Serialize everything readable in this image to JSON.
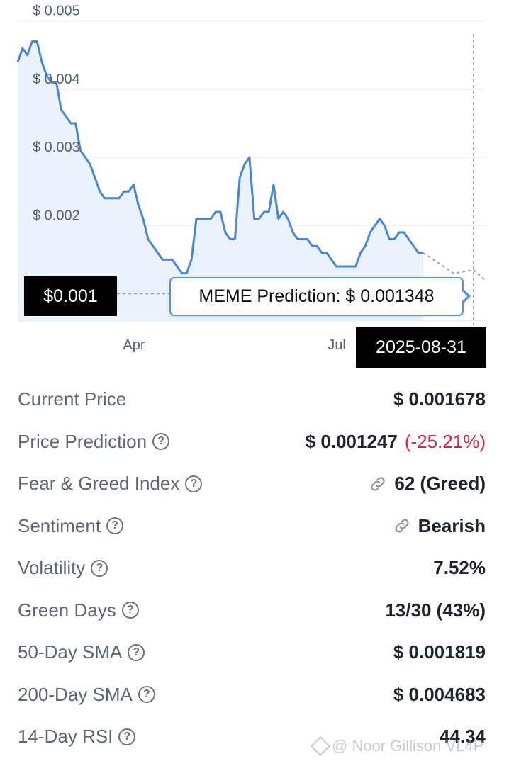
{
  "chart_data": {
    "type": "area",
    "y_ticks": [
      "$ 0.005",
      "$ 0.004",
      "$ 0.003",
      "$ 0.002"
    ],
    "y_tick_values": [
      0.005,
      0.004,
      0.003,
      0.002
    ],
    "x_ticks": [
      "Apr",
      "Jul"
    ],
    "ylim": [
      0.0006,
      0.0051
    ],
    "grid": true,
    "series": [
      {
        "values": [
          0.0044,
          0.0046,
          0.0045,
          0.0047,
          0.0047,
          0.0044,
          0.0042,
          0.0041,
          0.0041,
          0.0037,
          0.0036,
          0.0035,
          0.0035,
          0.0031,
          0.003,
          0.0029,
          0.0027,
          0.0025,
          0.0024,
          0.0024,
          0.0024,
          0.0024,
          0.0025,
          0.0025,
          0.0026,
          0.0023,
          0.0021,
          0.0018,
          0.0017,
          0.0016,
          0.0015,
          0.0015,
          0.0015,
          0.0014,
          0.0013,
          0.0013,
          0.0015,
          0.0021,
          0.0021,
          0.0021,
          0.0021,
          0.0022,
          0.0022,
          0.0019,
          0.0018,
          0.0018,
          0.0027,
          0.0029,
          0.003,
          0.0021,
          0.0021,
          0.0022,
          0.0022,
          0.0026,
          0.0021,
          0.0022,
          0.0021,
          0.0019,
          0.0018,
          0.0018,
          0.0018,
          0.0017,
          0.0017,
          0.0016,
          0.0016,
          0.0015,
          0.0014,
          0.0014,
          0.0014,
          0.0014,
          0.0014,
          0.0016,
          0.0017,
          0.0019,
          0.002,
          0.0021,
          0.002,
          0.0018,
          0.0018,
          0.0019,
          0.0019,
          0.0018,
          0.0017,
          0.0016,
          0.0016
        ]
      }
    ]
  },
  "chart": {
    "price_tag": "$0.001",
    "date_tag": "2025-08-31",
    "tooltip": "MEME Prediction: $ 0.001348"
  },
  "colors": {
    "line": "#4a86d4",
    "fill": "#eaf2fc",
    "negative": "#d6283f",
    "positive": "#40a836"
  },
  "stats": {
    "current_price": {
      "label": "Current Price",
      "value": "$ 0.001678"
    },
    "price_prediction": {
      "label": "Price Prediction",
      "value": "$ 0.001247",
      "change": "(-25.21%)"
    },
    "fear_greed": {
      "label": "Fear & Greed Index",
      "value": "62 (Greed)"
    },
    "sentiment": {
      "label": "Sentiment",
      "value": "Bearish"
    },
    "volatility": {
      "label": "Volatility",
      "value": "7.52%"
    },
    "green_days": {
      "label": "Green Days",
      "value": "13/30 (43%)"
    },
    "sma50": {
      "label": "50-Day SMA",
      "value": "$ 0.001819"
    },
    "sma200": {
      "label": "200-Day SMA",
      "value": "$ 0.004683"
    },
    "rsi14": {
      "label": "14-Day RSI",
      "value": "44.34"
    }
  },
  "icons": {
    "help": "help-circle-icon",
    "link": "link-icon"
  },
  "watermark": "@ Noor Gillison VL4P"
}
